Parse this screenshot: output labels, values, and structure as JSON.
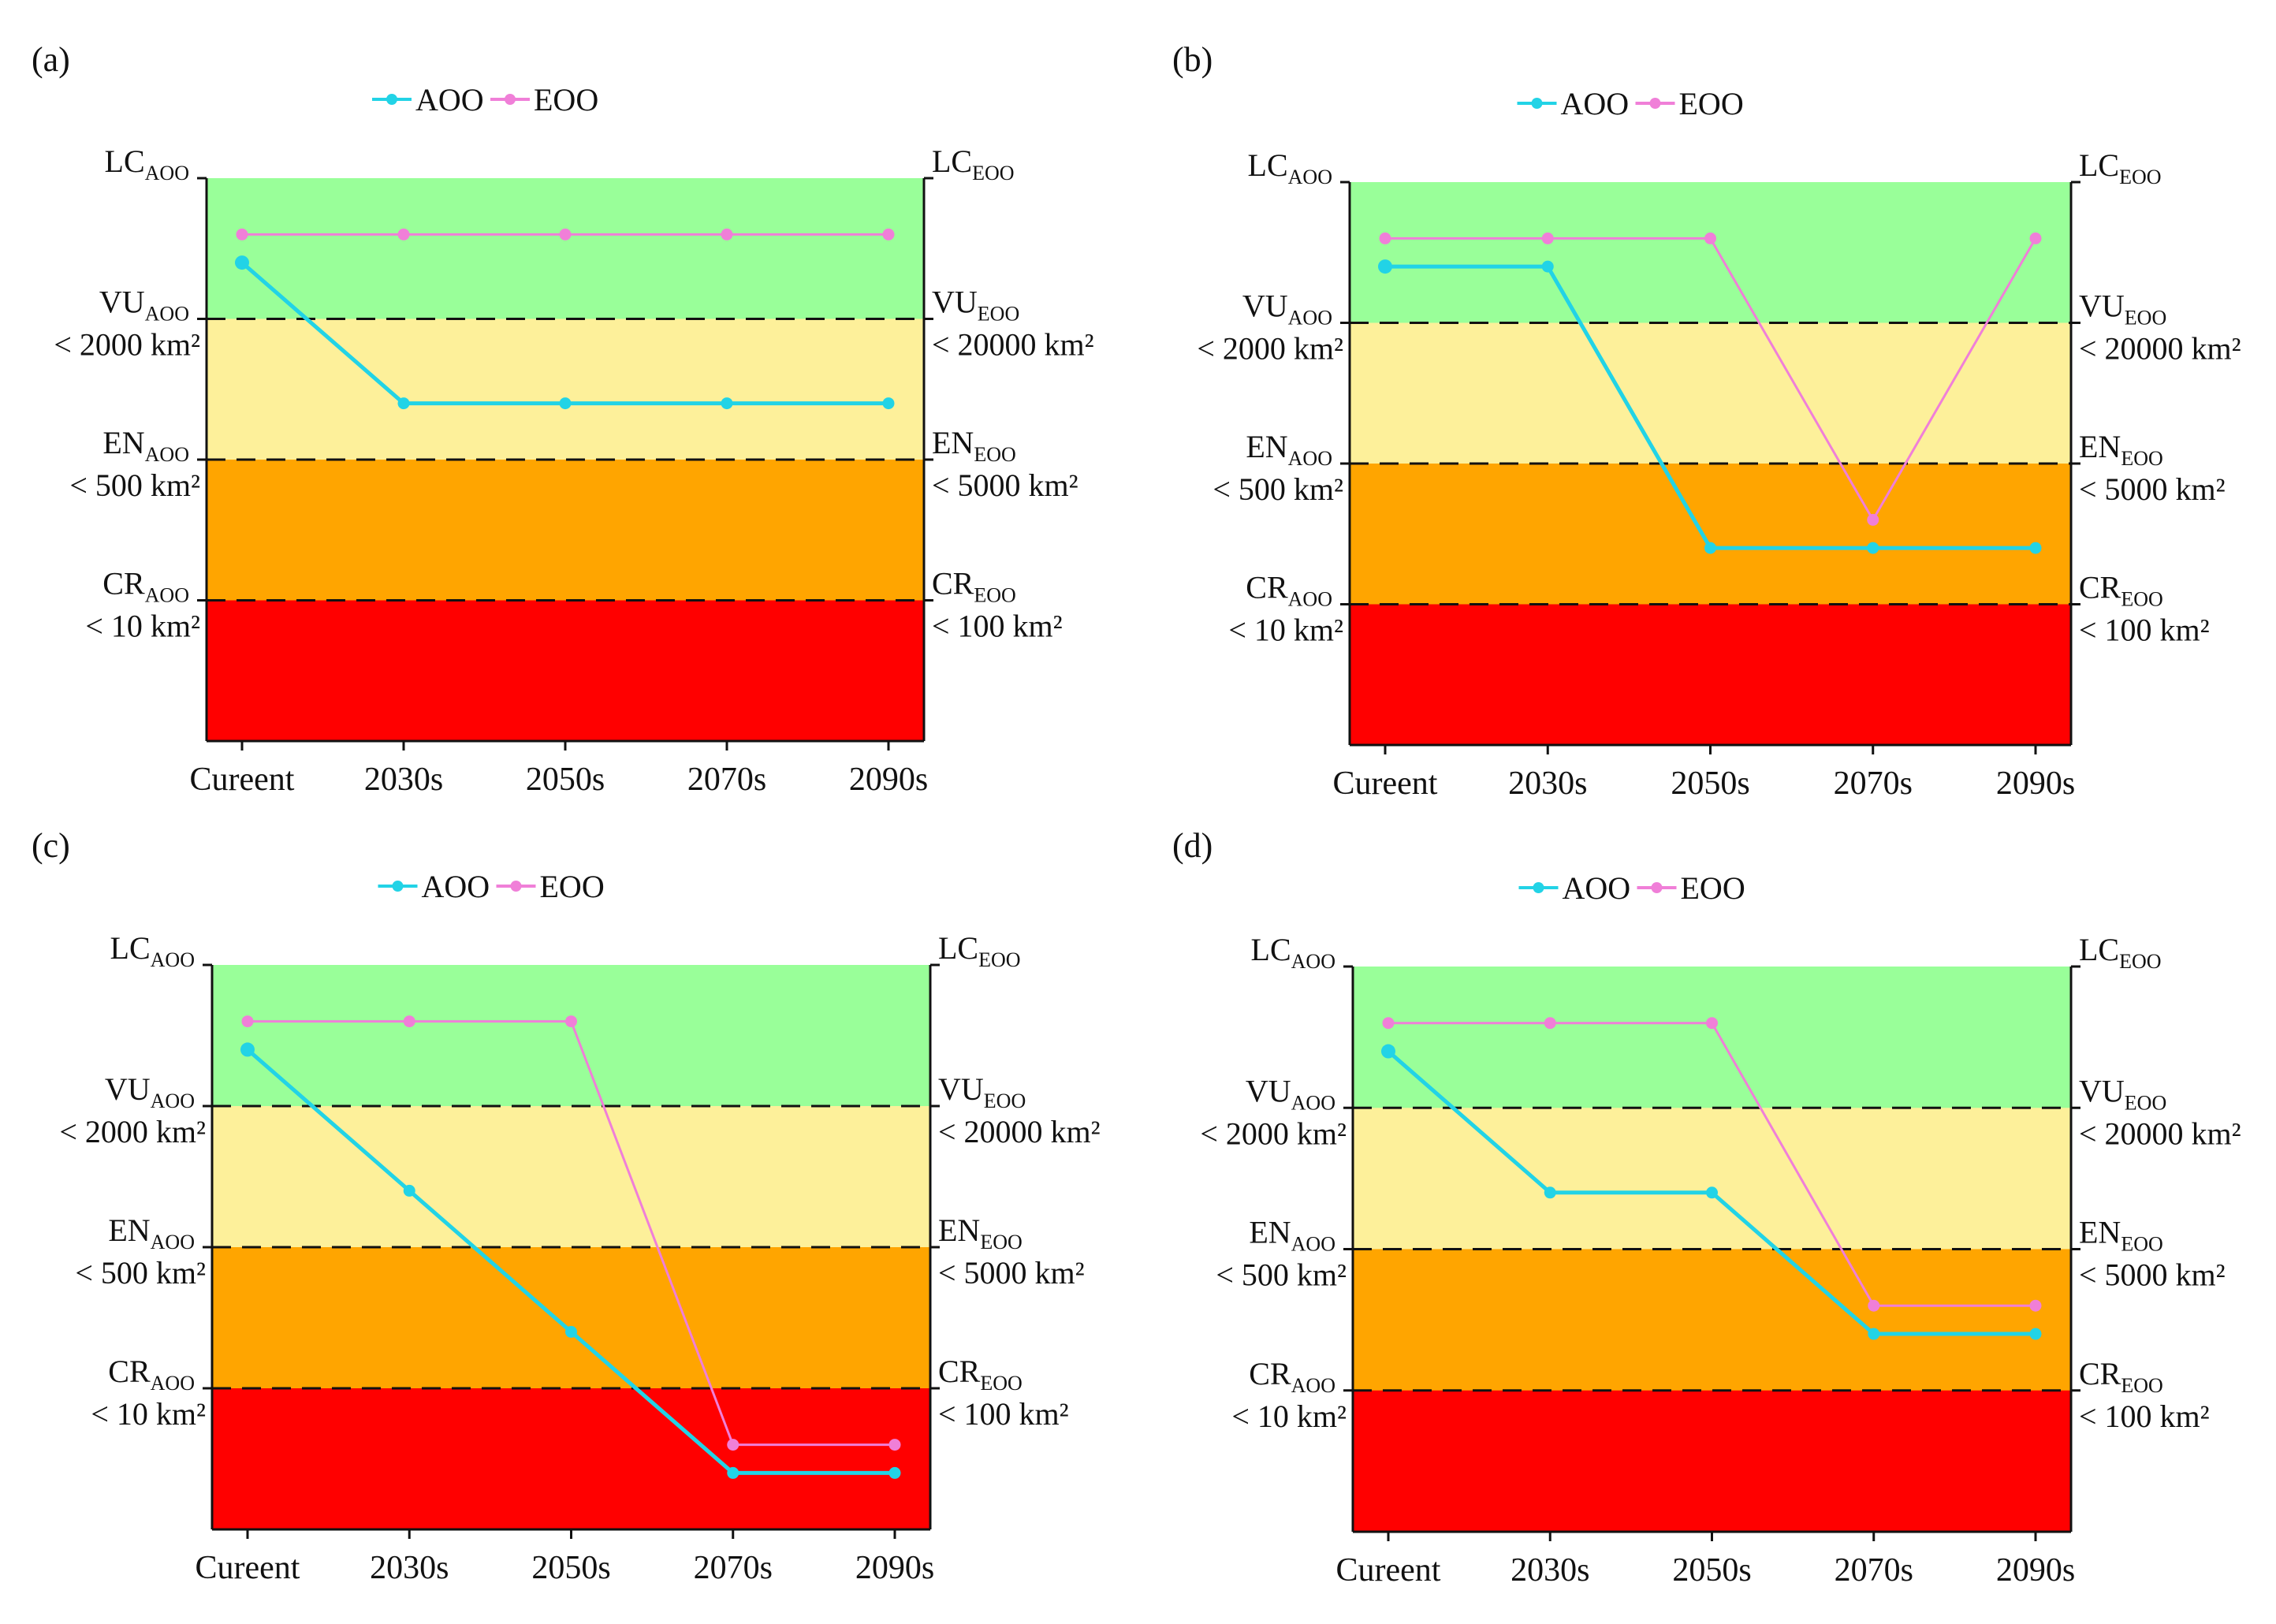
{
  "chart_data": [
    {
      "type": "line",
      "panel_label": "(a)",
      "categories": [
        "Cureent",
        "2030s",
        "2050s",
        "2070s",
        "2090s"
      ],
      "y_scale": "ordinal risk level (0 = bottom of CR band, 4 = top of LC band)",
      "ylim": [
        0,
        4
      ],
      "legend": [
        "AOO",
        "EOO"
      ],
      "legend_position": "top-center",
      "series": [
        {
          "name": "AOO",
          "color": "#22d3e6",
          "values": [
            3.4,
            2.4,
            2.4,
            2.4,
            2.4
          ]
        },
        {
          "name": "EOO",
          "color": "#f07fd8",
          "values": [
            3.6,
            3.6,
            3.6,
            3.6,
            3.6
          ]
        }
      ],
      "bands": [
        {
          "name": "LC",
          "color": "#99ff99"
        },
        {
          "name": "VU",
          "color": "#fdf09a"
        },
        {
          "name": "EN",
          "color": "#ffa500"
        },
        {
          "name": "CR",
          "color": "#ff0000"
        }
      ],
      "left_labels": [
        {
          "abbr": "LC",
          "sub": "AOO",
          "threshold": ""
        },
        {
          "abbr": "VU",
          "sub": "AOO",
          "threshold": "< 2000 km²"
        },
        {
          "abbr": "EN",
          "sub": "AOO",
          "threshold": "< 500 km²"
        },
        {
          "abbr": "CR",
          "sub": "AOO",
          "threshold": "< 10 km²"
        }
      ],
      "right_labels": [
        {
          "abbr": "LC",
          "sub": "EOO",
          "threshold": ""
        },
        {
          "abbr": "VU",
          "sub": "EOO",
          "threshold": "< 20000 km²"
        },
        {
          "abbr": "EN",
          "sub": "EOO",
          "threshold": "< 5000 km²"
        },
        {
          "abbr": "CR",
          "sub": "EOO",
          "threshold": "< 100 km²"
        }
      ]
    },
    {
      "type": "line",
      "panel_label": "(b)",
      "categories": [
        "Cureent",
        "2030s",
        "2050s",
        "2070s",
        "2090s"
      ],
      "y_scale": "ordinal risk level (0 = bottom of CR band, 4 = top of LC band)",
      "ylim": [
        0,
        4
      ],
      "legend": [
        "AOO",
        "EOO"
      ],
      "legend_position": "top-center",
      "series": [
        {
          "name": "AOO",
          "color": "#22d3e6",
          "values": [
            3.4,
            3.4,
            1.4,
            1.4,
            1.4
          ]
        },
        {
          "name": "EOO",
          "color": "#f07fd8",
          "values": [
            3.6,
            3.6,
            3.6,
            1.6,
            3.6
          ]
        }
      ],
      "bands": [
        {
          "name": "LC",
          "color": "#99ff99"
        },
        {
          "name": "VU",
          "color": "#fdf09a"
        },
        {
          "name": "EN",
          "color": "#ffa500"
        },
        {
          "name": "CR",
          "color": "#ff0000"
        }
      ],
      "left_labels": [
        {
          "abbr": "LC",
          "sub": "AOO",
          "threshold": ""
        },
        {
          "abbr": "VU",
          "sub": "AOO",
          "threshold": "< 2000 km²"
        },
        {
          "abbr": "EN",
          "sub": "AOO",
          "threshold": "< 500 km²"
        },
        {
          "abbr": "CR",
          "sub": "AOO",
          "threshold": "< 10 km²"
        }
      ],
      "right_labels": [
        {
          "abbr": "LC",
          "sub": "EOO",
          "threshold": ""
        },
        {
          "abbr": "VU",
          "sub": "EOO",
          "threshold": "< 20000 km²"
        },
        {
          "abbr": "EN",
          "sub": "EOO",
          "threshold": "< 5000 km²"
        },
        {
          "abbr": "CR",
          "sub": "EOO",
          "threshold": "< 100 km²"
        }
      ]
    },
    {
      "type": "line",
      "panel_label": "(c)",
      "categories": [
        "Cureent",
        "2030s",
        "2050s",
        "2070s",
        "2090s"
      ],
      "y_scale": "ordinal risk level (0 = bottom of CR band, 4 = top of LC band)",
      "ylim": [
        0,
        4
      ],
      "legend": [
        "AOO",
        "EOO"
      ],
      "legend_position": "top-center",
      "series": [
        {
          "name": "AOO",
          "color": "#22d3e6",
          "values": [
            3.4,
            2.4,
            1.4,
            0.4,
            0.4
          ]
        },
        {
          "name": "EOO",
          "color": "#f07fd8",
          "values": [
            3.6,
            3.6,
            3.6,
            0.6,
            0.6
          ]
        }
      ],
      "bands": [
        {
          "name": "LC",
          "color": "#99ff99"
        },
        {
          "name": "VU",
          "color": "#fdf09a"
        },
        {
          "name": "EN",
          "color": "#ffa500"
        },
        {
          "name": "CR",
          "color": "#ff0000"
        }
      ],
      "left_labels": [
        {
          "abbr": "LC",
          "sub": "AOO",
          "threshold": ""
        },
        {
          "abbr": "VU",
          "sub": "AOO",
          "threshold": "< 2000 km²"
        },
        {
          "abbr": "EN",
          "sub": "AOO",
          "threshold": "< 500 km²"
        },
        {
          "abbr": "CR",
          "sub": "AOO",
          "threshold": "< 10 km²"
        }
      ],
      "right_labels": [
        {
          "abbr": "LC",
          "sub": "EOO",
          "threshold": ""
        },
        {
          "abbr": "VU",
          "sub": "EOO",
          "threshold": "< 20000 km²"
        },
        {
          "abbr": "EN",
          "sub": "EOO",
          "threshold": "< 5000 km²"
        },
        {
          "abbr": "CR",
          "sub": "EOO",
          "threshold": "< 100 km²"
        }
      ]
    },
    {
      "type": "line",
      "panel_label": "(d)",
      "categories": [
        "Cureent",
        "2030s",
        "2050s",
        "2070s",
        "2090s"
      ],
      "y_scale": "ordinal risk level (0 = bottom of CR band, 4 = top of LC band)",
      "ylim": [
        0,
        4
      ],
      "legend": [
        "AOO",
        "EOO"
      ],
      "legend_position": "top-center",
      "series": [
        {
          "name": "AOO",
          "color": "#22d3e6",
          "values": [
            3.4,
            2.4,
            2.4,
            1.4,
            1.4
          ]
        },
        {
          "name": "EOO",
          "color": "#f07fd8",
          "values": [
            3.6,
            3.6,
            3.6,
            1.6,
            1.6
          ]
        }
      ],
      "bands": [
        {
          "name": "LC",
          "color": "#99ff99"
        },
        {
          "name": "VU",
          "color": "#fdf09a"
        },
        {
          "name": "EN",
          "color": "#ffa500"
        },
        {
          "name": "CR",
          "color": "#ff0000"
        }
      ],
      "left_labels": [
        {
          "abbr": "LC",
          "sub": "AOO",
          "threshold": ""
        },
        {
          "abbr": "VU",
          "sub": "AOO",
          "threshold": "< 2000 km²"
        },
        {
          "abbr": "EN",
          "sub": "AOO",
          "threshold": "< 500 km²"
        },
        {
          "abbr": "CR",
          "sub": "AOO",
          "threshold": "< 10 km²"
        }
      ],
      "right_labels": [
        {
          "abbr": "LC",
          "sub": "EOO",
          "threshold": ""
        },
        {
          "abbr": "VU",
          "sub": "EOO",
          "threshold": "< 20000 km²"
        },
        {
          "abbr": "EN",
          "sub": "EOO",
          "threshold": "< 5000 km²"
        },
        {
          "abbr": "CR",
          "sub": "EOO",
          "threshold": "< 100 km²"
        }
      ]
    }
  ]
}
